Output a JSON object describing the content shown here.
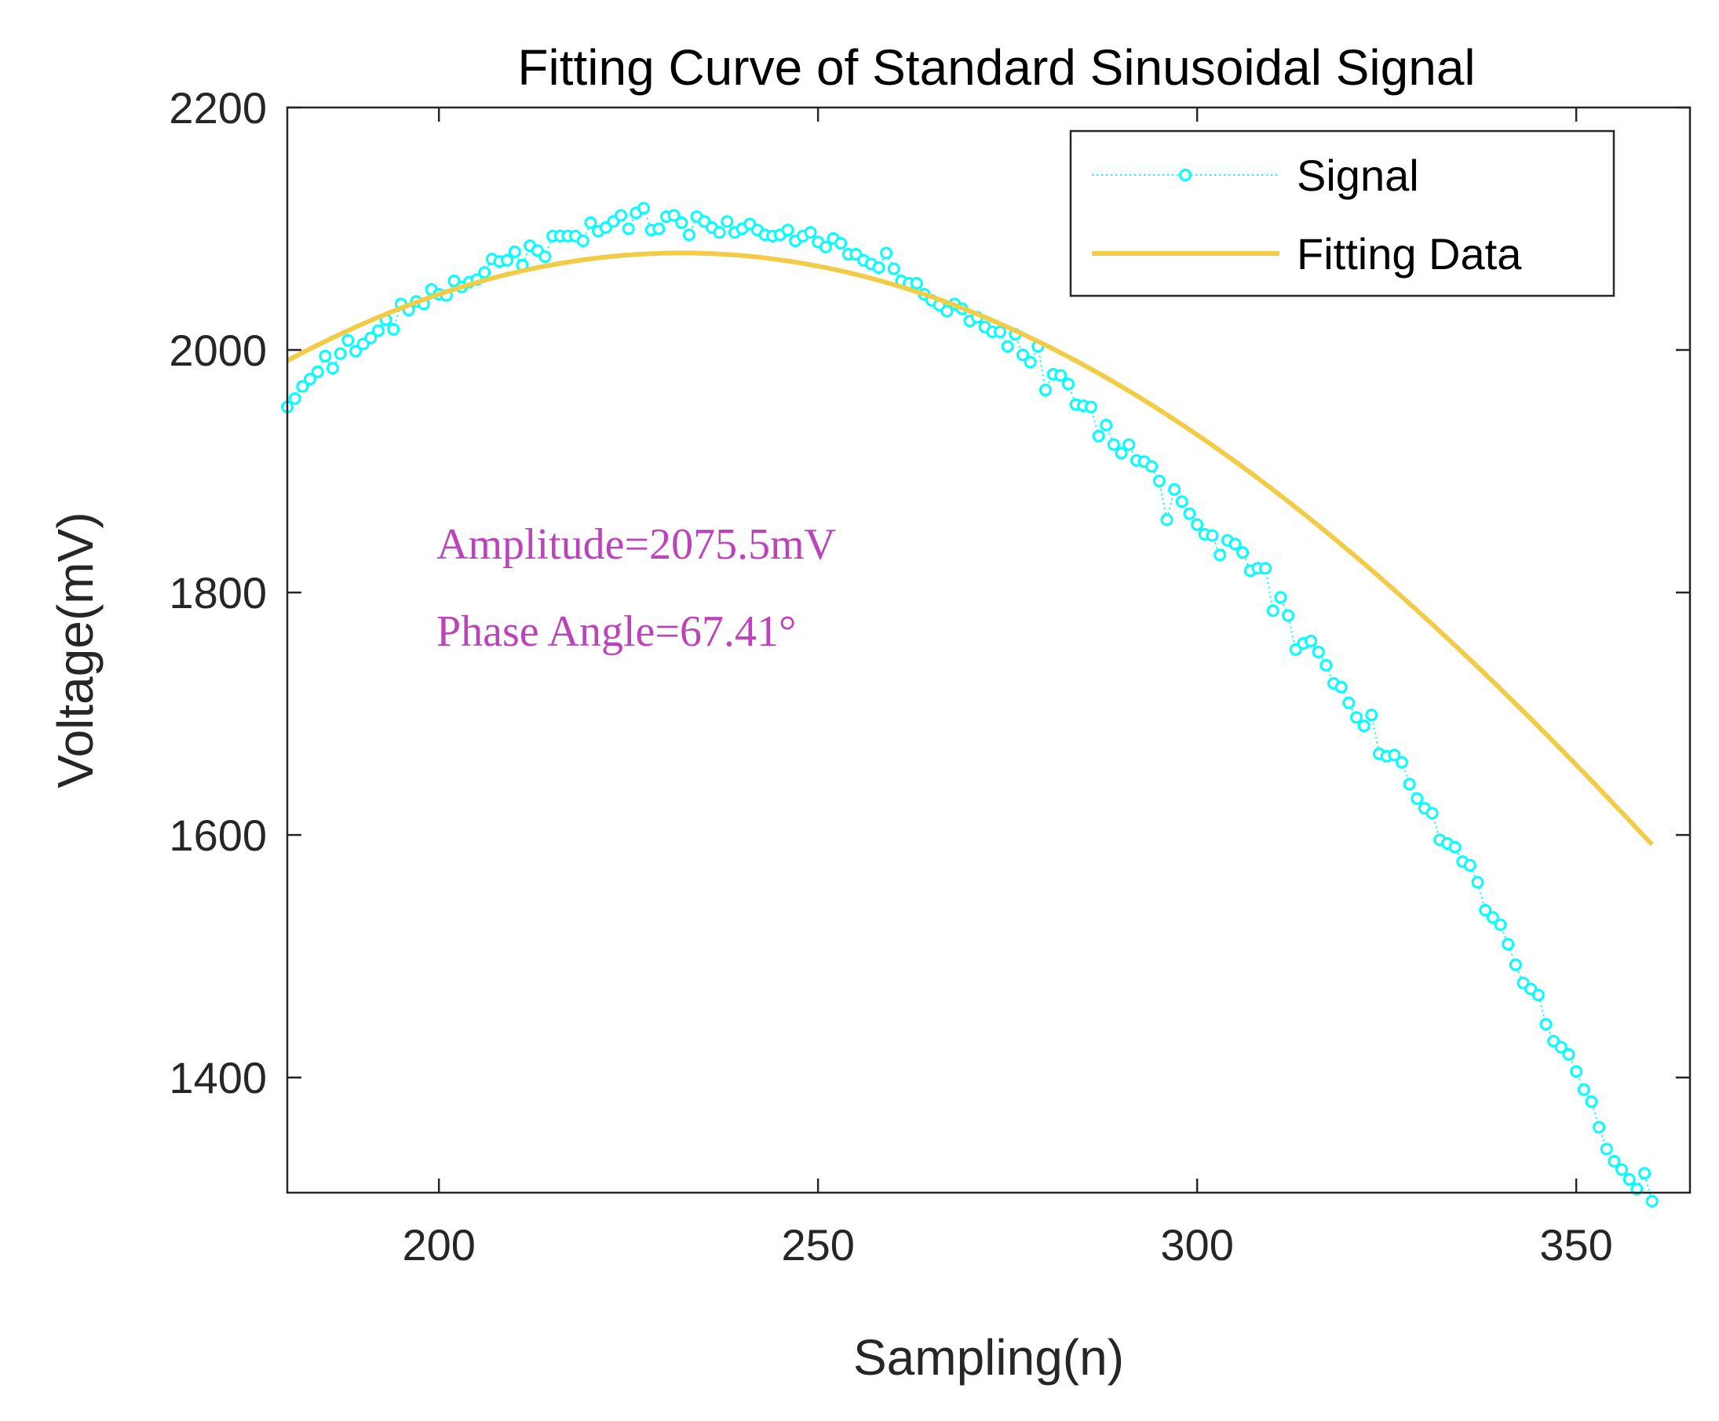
{
  "chart_data": {
    "type": "line",
    "title": "Fitting Curve of Standard Sinusoidal Signal",
    "xlabel": "Sampling(n)",
    "ylabel": "Voltage(mV)",
    "xlim": [
      180,
      365
    ],
    "ylim": [
      1305,
      2200
    ],
    "xticks": [
      200,
      250,
      300,
      350
    ],
    "yticks": [
      1400,
      1600,
      1800,
      2000,
      2200
    ],
    "grid": false,
    "legend_position": "top-right",
    "series": [
      {
        "name": "Signal",
        "color": "#00ffff",
        "style": "dotted line with circle markers",
        "x": [
          180,
          181,
          182,
          183,
          184,
          185,
          186,
          187,
          188,
          189,
          190,
          191,
          192,
          193,
          194,
          195,
          196,
          197,
          198,
          199,
          200,
          201,
          202,
          203,
          204,
          205,
          206,
          207,
          208,
          209,
          210,
          211,
          212,
          213,
          214,
          215,
          216,
          217,
          218,
          219,
          220,
          221,
          222,
          223,
          224,
          225,
          226,
          227,
          228,
          229,
          230,
          231,
          232,
          233,
          234,
          235,
          236,
          237,
          238,
          239,
          240,
          241,
          242,
          243,
          244,
          245,
          246,
          247,
          248,
          249,
          250,
          251,
          252,
          253,
          254,
          255,
          256,
          257,
          258,
          259,
          260,
          261,
          262,
          263,
          264,
          265,
          266,
          267,
          268,
          269,
          270,
          271,
          272,
          273,
          274,
          275,
          276,
          277,
          278,
          279,
          280,
          281,
          282,
          283,
          284,
          285,
          286,
          287,
          288,
          289,
          290,
          291,
          292,
          293,
          294,
          295,
          296,
          297,
          298,
          299,
          300,
          301,
          302,
          303,
          304,
          305,
          306,
          307,
          308,
          309,
          310,
          311,
          312,
          313,
          314,
          315,
          316,
          317,
          318,
          319,
          320,
          321,
          322,
          323,
          324,
          325,
          326,
          327,
          328,
          329,
          330,
          331,
          332,
          333,
          334,
          335,
          336,
          337,
          338,
          339,
          340,
          341,
          342,
          343,
          344,
          345,
          346,
          347,
          348,
          349,
          350,
          351,
          352,
          353,
          354,
          355,
          356,
          357,
          358,
          359,
          360
        ],
        "y": [
          1953,
          1960,
          1970,
          1976,
          1982,
          1995,
          1985,
          1997,
          2008,
          1999,
          2005,
          2010,
          2016,
          2025,
          2017,
          2038,
          2033,
          2040,
          2038,
          2050,
          2046,
          2045,
          2057,
          2052,
          2056,
          2058,
          2064,
          2075,
          2073,
          2074,
          2081,
          2070,
          2086,
          2082,
          2077,
          2094,
          2094,
          2094,
          2094,
          2090,
          2105,
          2098,
          2101,
          2106,
          2111,
          2100,
          2113,
          2117,
          2099,
          2100,
          2110,
          2111,
          2105,
          2095,
          2110,
          2106,
          2101,
          2097,
          2106,
          2097,
          2100,
          2104,
          2099,
          2095,
          2094,
          2095,
          2099,
          2090,
          2094,
          2097,
          2089,
          2085,
          2092,
          2088,
          2079,
          2079,
          2074,
          2071,
          2068,
          2080,
          2067,
          2057,
          2055,
          2055,
          2046,
          2041,
          2037,
          2032,
          2038,
          2034,
          2024,
          2027,
          2019,
          2015,
          2015,
          2003,
          2013,
          1996,
          1990,
          2003,
          1967,
          1980,
          1979,
          1972,
          1955,
          1954,
          1953,
          1929,
          1938,
          1922,
          1915,
          1922,
          1909,
          1908,
          1904,
          1892,
          1860,
          1885,
          1875,
          1865,
          1856,
          1848,
          1847,
          1831,
          1843,
          1840,
          1833,
          1818,
          1820,
          1820,
          1785,
          1796,
          1781,
          1753,
          1758,
          1760,
          1751,
          1740,
          1725,
          1722,
          1709,
          1697,
          1690,
          1699,
          1667,
          1665,
          1666,
          1660,
          1642,
          1630,
          1622,
          1618,
          1596,
          1593,
          1590,
          1578,
          1575,
          1561,
          1538,
          1532,
          1526,
          1510,
          1493,
          1478,
          1473,
          1468,
          1444,
          1430,
          1425,
          1419,
          1405,
          1390,
          1380,
          1359,
          1341,
          1331,
          1324,
          1316,
          1308,
          1321,
          1298
        ]
      },
      {
        "name": "Fitting Data",
        "color": "#f2cc47",
        "style": "solid line",
        "function": {
          "form": "center + half_range * cos((x - peak_x) * pi / half_period)",
          "center": 1295,
          "half_range": 785,
          "peak_x": 232,
          "half_period": 340
        },
        "x_range": [
          180,
          360
        ]
      }
    ],
    "annotations": [
      {
        "text": "Amplitude=2075.5mV",
        "color": "#bb44bb"
      },
      {
        "text": "Phase Angle=67.41°",
        "color": "#bb44bb"
      }
    ]
  }
}
